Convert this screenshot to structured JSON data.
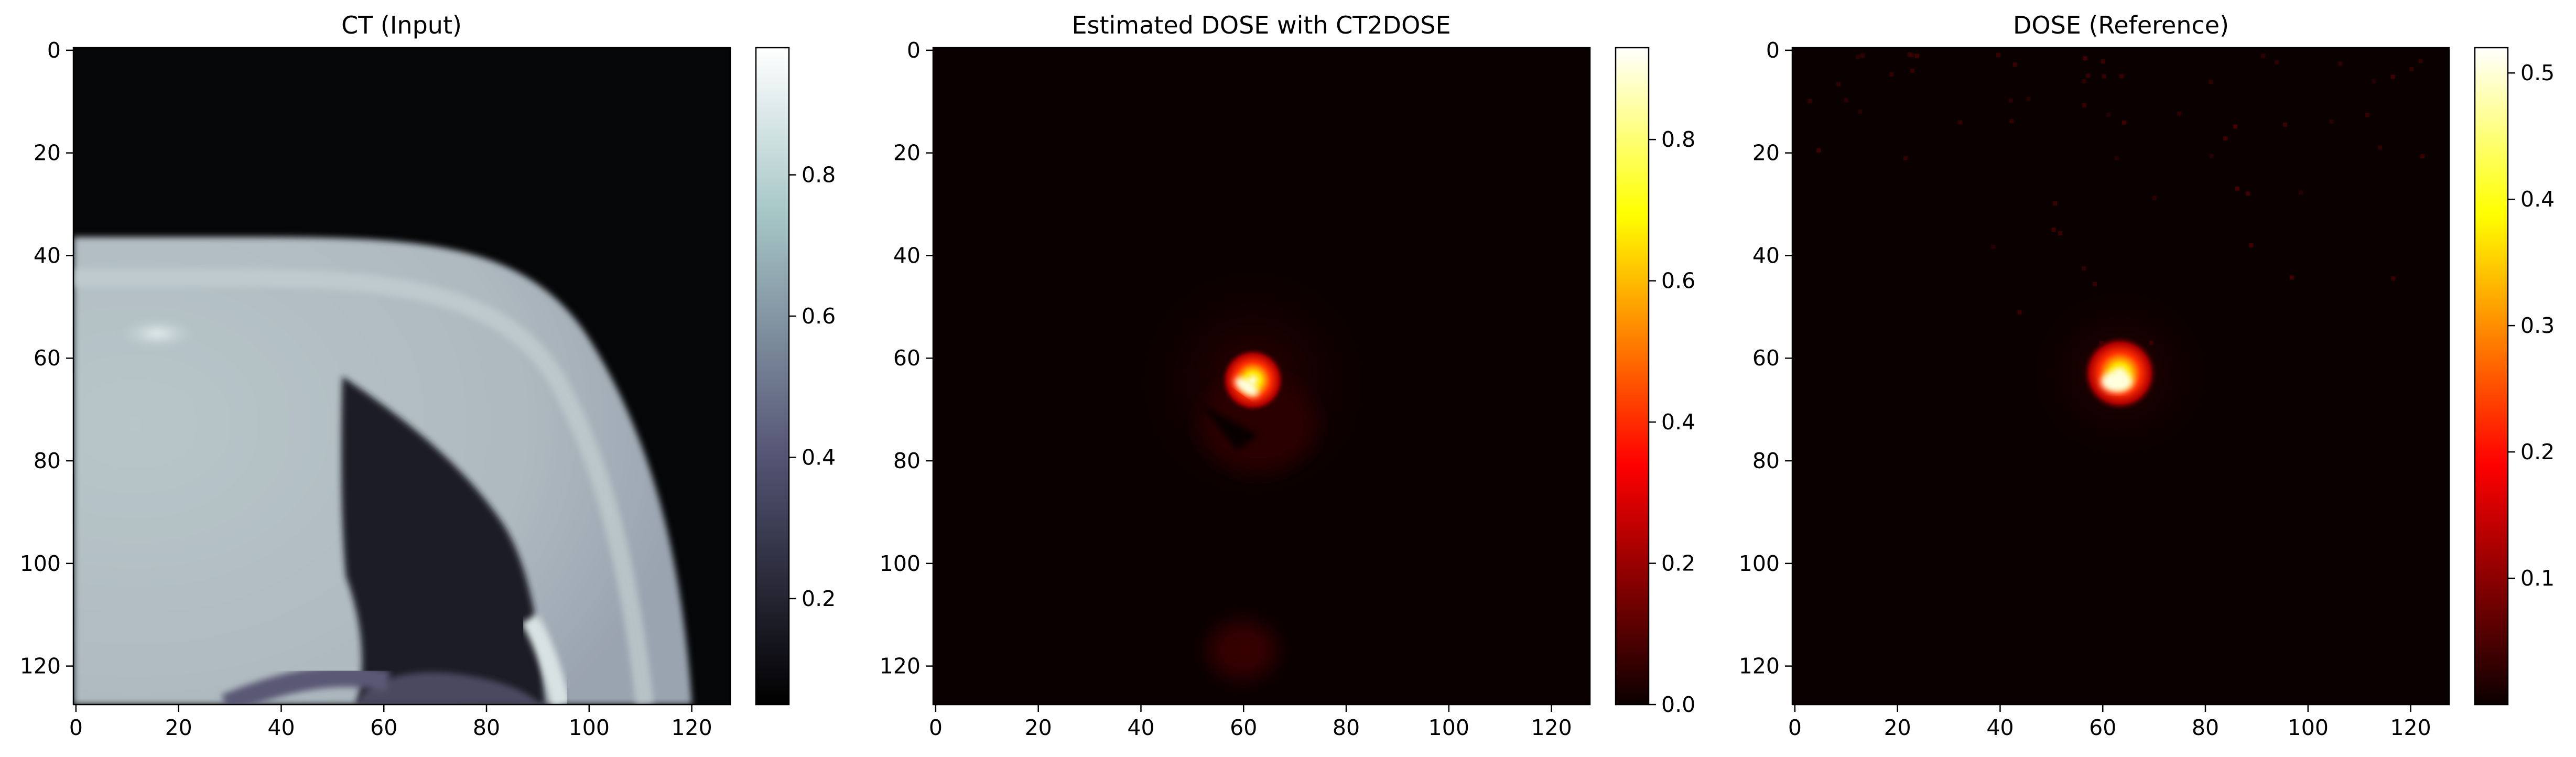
{
  "chart_data": [
    {
      "type": "heatmap",
      "title": "CT (Input)",
      "colormap": "bone",
      "x_ticks": [
        "0",
        "20",
        "40",
        "60",
        "80",
        "100",
        "120"
      ],
      "y_ticks": [
        "0",
        "20",
        "40",
        "60",
        "80",
        "100",
        "120"
      ],
      "xlim": [
        0,
        128
      ],
      "ylim": [
        128,
        0
      ],
      "colorbar": {
        "ticks": [
          "0.2",
          "0.4",
          "0.6",
          "0.8"
        ],
        "tick_values": [
          0.2,
          0.4,
          0.6,
          0.8
        ],
        "range": [
          0.05,
          0.98
        ]
      }
    },
    {
      "type": "heatmap",
      "title": "Estimated DOSE with CT2DOSE",
      "colormap": "hot",
      "x_ticks": [
        "0",
        "20",
        "40",
        "60",
        "80",
        "100",
        "120"
      ],
      "y_ticks": [
        "0",
        "20",
        "40",
        "60",
        "80",
        "100",
        "120"
      ],
      "xlim": [
        0,
        128
      ],
      "ylim": [
        128,
        0
      ],
      "colorbar": {
        "ticks": [
          "0.0",
          "0.2",
          "0.4",
          "0.6",
          "0.8"
        ],
        "tick_values": [
          0.0,
          0.2,
          0.4,
          0.6,
          0.8
        ],
        "range": [
          0.0,
          0.93
        ]
      }
    },
    {
      "type": "heatmap",
      "title": "DOSE (Reference)",
      "colormap": "hot",
      "x_ticks": [
        "0",
        "20",
        "40",
        "60",
        "80",
        "100",
        "120"
      ],
      "y_ticks": [
        "0",
        "20",
        "40",
        "60",
        "80",
        "100",
        "120"
      ],
      "xlim": [
        0,
        128
      ],
      "ylim": [
        128,
        0
      ],
      "colorbar": {
        "ticks": [
          "0.1",
          "0.2",
          "0.3",
          "0.4",
          "0.5"
        ],
        "tick_values": [
          0.1,
          0.2,
          0.3,
          0.4,
          0.5
        ],
        "range": [
          0.0,
          0.52
        ]
      }
    }
  ]
}
